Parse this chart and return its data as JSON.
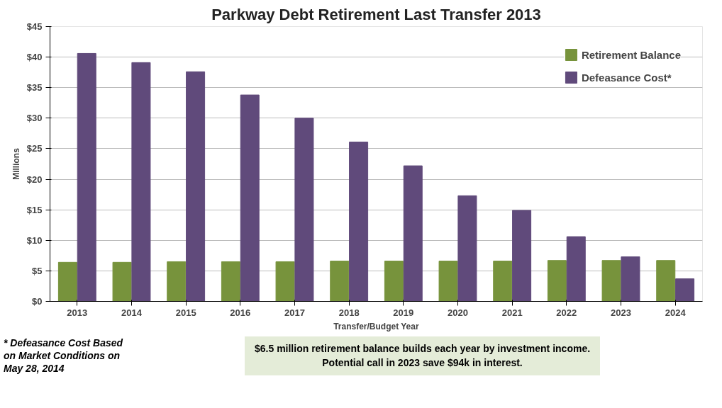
{
  "chart_data": {
    "type": "bar",
    "title": "Parkway Debt Retirement Last Transfer 2013",
    "xlabel": "Transfer/Budget Year",
    "ylabel": "Millions",
    "categories": [
      "2013",
      "2014",
      "2015",
      "2016",
      "2017",
      "2018",
      "2019",
      "2020",
      "2021",
      "2022",
      "2023",
      "2024"
    ],
    "series": [
      {
        "name": "Retirement Balance",
        "color": "#77933c",
        "values": [
          6.4,
          6.4,
          6.5,
          6.5,
          6.5,
          6.6,
          6.6,
          6.6,
          6.6,
          6.7,
          6.7,
          6.7
        ]
      },
      {
        "name": "Defeasance Cost*",
        "color": "#604a7b",
        "values": [
          40.6,
          39.1,
          37.6,
          33.8,
          30.0,
          26.1,
          22.2,
          17.3,
          14.9,
          10.6,
          7.3,
          3.7
        ]
      }
    ],
    "ylim": [
      0,
      45
    ],
    "yticks": [
      {
        "value": 0,
        "label": "$0"
      },
      {
        "value": 5,
        "label": "$5"
      },
      {
        "value": 10,
        "label": "$10"
      },
      {
        "value": 15,
        "label": "$15"
      },
      {
        "value": 20,
        "label": "$20"
      },
      {
        "value": 25,
        "label": "$25"
      },
      {
        "value": 30,
        "label": "$30"
      },
      {
        "value": 35,
        "label": "$35"
      },
      {
        "value": 40,
        "label": "$40"
      },
      {
        "value": 45,
        "label": "$45"
      }
    ],
    "grid": "y",
    "legend": "top right",
    "annotations": [
      "* Defeasance Cost Based\non Market Conditions on\nMay 28, 2014",
      "$6.5 million retirement balance builds each year by investment income.\nPotential call in 2023 save $94k in interest."
    ]
  }
}
